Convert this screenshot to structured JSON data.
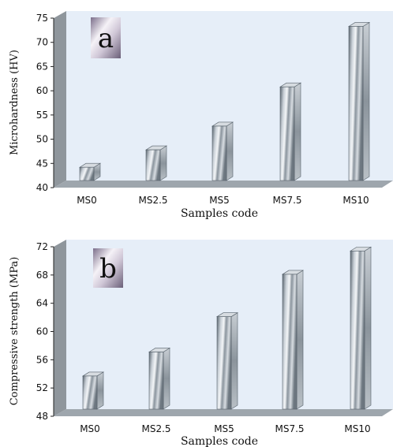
{
  "chart_data": [
    {
      "type": "bar",
      "panel_label": "a",
      "categories": [
        "MS0",
        "MS2.5",
        "MS5",
        "MS7.5",
        "MS10"
      ],
      "values": [
        44.2,
        47.8,
        52.7,
        60.8,
        73.3
      ],
      "xlabel": "Samples code",
      "ylabel": "Microhardness (HV)",
      "ylim": [
        40,
        75
      ],
      "yticks": [
        40,
        45,
        50,
        55,
        60,
        65,
        70,
        75
      ],
      "grid": false,
      "style": "3d-metallic-bars"
    },
    {
      "type": "bar",
      "panel_label": "b",
      "categories": [
        "MS0",
        "MS2.5",
        "MS5",
        "MS7.5",
        "MS10"
      ],
      "values": [
        53.7,
        57.1,
        62.1,
        68.1,
        71.4
      ],
      "xlabel": "Samples code",
      "ylabel": "Compressive strength (MPa)",
      "ylim": [
        48,
        72
      ],
      "yticks": [
        48,
        52,
        56,
        60,
        64,
        68,
        72
      ],
      "grid": false,
      "style": "3d-metallic-bars"
    }
  ],
  "colors": {
    "wall": "#e6eef8",
    "floor": "#9ea6ad",
    "side_wall": "#8f969c",
    "bar_light": "#f2f4f7",
    "bar_dark": "#4a5560"
  }
}
